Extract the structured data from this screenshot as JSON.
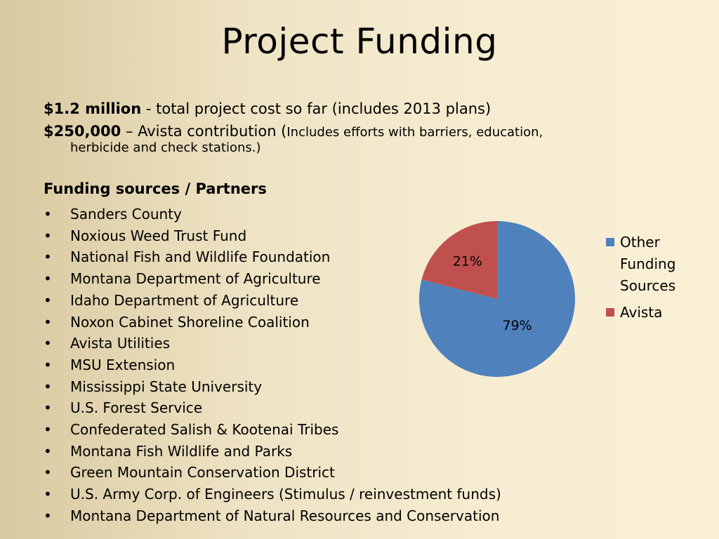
{
  "slide": {
    "title": "Project Funding",
    "cost": {
      "total_amount": "$1.2 million",
      "total_desc": " - total project cost so far (includes 2013 plans)",
      "avista_amount": "$250,000",
      "avista_desc": " – Avista contribution (",
      "avista_note_a": "Includes efforts with barriers, education,",
      "avista_note_b": "herbicide and check stations.)"
    },
    "sources_heading": "Funding sources / Partners",
    "bullet": "•",
    "partners": [
      "Sanders County",
      "Noxious Weed Trust Fund",
      "National Fish and Wildlife Foundation",
      "Montana Department of Agriculture",
      "Idaho Department of Agriculture",
      "Noxon Cabinet Shoreline Coalition",
      "Avista Utilities",
      "MSU Extension",
      "Mississippi State University",
      "U.S. Forest Service",
      "Confederated Salish & Kootenai Tribes",
      "Montana Fish Wildlife and Parks",
      "Green Mountain Conservation District",
      "U.S. Army Corp. of Engineers (Stimulus / reinvestment funds)",
      "Montana Department of Natural Resources and Conservation"
    ]
  },
  "chart_data": {
    "type": "pie",
    "categories": [
      "Other Funding Sources",
      "Avista"
    ],
    "values": [
      79,
      21
    ],
    "data_labels": [
      "79%",
      "21%"
    ],
    "colors": [
      "#4f81bd",
      "#c0504d"
    ],
    "legend_lines": [
      [
        "Other",
        "Funding",
        "Sources"
      ],
      [
        "Avista"
      ]
    ],
    "legend_position": "right"
  }
}
